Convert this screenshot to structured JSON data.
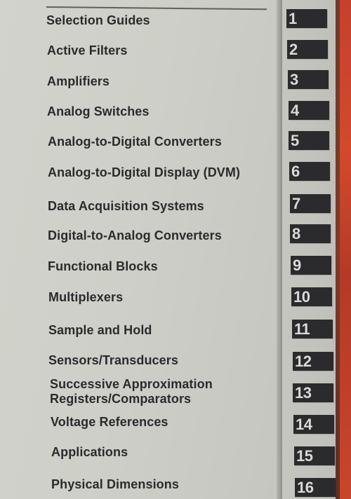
{
  "toc": {
    "entries": [
      {
        "title": "Selection Guides",
        "number": "1"
      },
      {
        "title": "Active Filters",
        "number": "2"
      },
      {
        "title": "Amplifiers",
        "number": "3"
      },
      {
        "title": "Analog Switches",
        "number": "4"
      },
      {
        "title": "Analog-to-Digital Converters",
        "number": "5"
      },
      {
        "title": "Analog-to-Digital Display (DVM)",
        "number": "6"
      },
      {
        "title": "Data Acquisition Systems",
        "number": "7"
      },
      {
        "title": "Digital-to-Analog Converters",
        "number": "8"
      },
      {
        "title": "Functional Blocks",
        "number": "9"
      },
      {
        "title": "Multiplexers",
        "number": "10"
      },
      {
        "title": "Sample and Hold",
        "number": "11"
      },
      {
        "title": "Sensors/Transducers",
        "number": "12"
      },
      {
        "title_line1": "Successive Approximation",
        "title_line2": "Registers/Comparators",
        "number": "13"
      },
      {
        "title": "Voltage References",
        "number": "14"
      },
      {
        "title": "Applications",
        "number": "15"
      },
      {
        "title": "Physical Dimensions",
        "number": "16"
      }
    ]
  }
}
